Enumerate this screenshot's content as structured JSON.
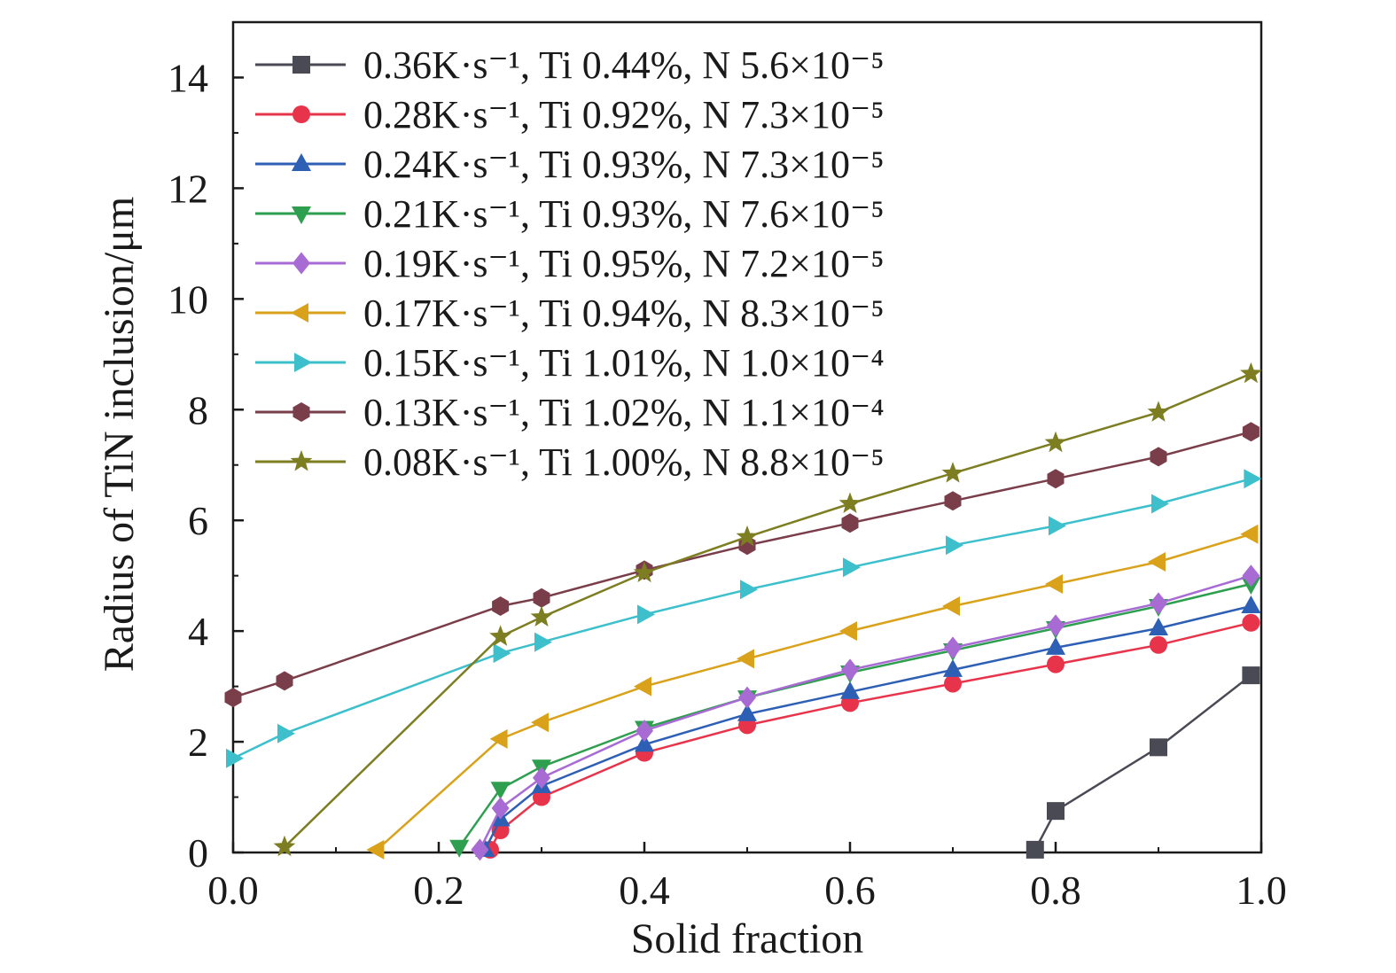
{
  "chart_data": {
    "type": "line",
    "title": "",
    "xlabel": "Solid fraction",
    "ylabel": "Radius of TiN inclusion/μm",
    "xlim": [
      0,
      1.0
    ],
    "ylim": [
      0,
      15
    ],
    "xticks": [
      "0.0",
      "0.2",
      "0.4",
      "0.6",
      "0.8",
      "1.0"
    ],
    "yticks": [
      "0",
      "2",
      "4",
      "6",
      "8",
      "10",
      "12",
      "14"
    ],
    "grid": false,
    "legend_position": "top-left",
    "series": [
      {
        "name": "0.36K·s⁻¹, Ti 0.44%, N 5.6×10⁻⁵",
        "color": "#4a4a55",
        "marker": "square",
        "x": [
          0.78,
          0.8,
          0.9,
          0.99
        ],
        "y": [
          0.05,
          0.75,
          1.9,
          3.2
        ]
      },
      {
        "name": "0.28K·s⁻¹, Ti 0.92%, N 7.3×10⁻⁵",
        "color": "#e8344a",
        "marker": "circle",
        "x": [
          0.25,
          0.26,
          0.3,
          0.4,
          0.5,
          0.6,
          0.7,
          0.8,
          0.9,
          0.99
        ],
        "y": [
          0.05,
          0.4,
          1.0,
          1.8,
          2.3,
          2.7,
          3.05,
          3.4,
          3.75,
          4.15
        ]
      },
      {
        "name": "0.24K·s⁻¹, Ti 0.93%, N 7.3×10⁻⁵",
        "color": "#2d5fb5",
        "marker": "triangle-up",
        "x": [
          0.245,
          0.26,
          0.3,
          0.4,
          0.5,
          0.6,
          0.7,
          0.8,
          0.9,
          0.99
        ],
        "y": [
          0.05,
          0.6,
          1.2,
          1.95,
          2.5,
          2.9,
          3.3,
          3.7,
          4.05,
          4.45
        ]
      },
      {
        "name": "0.21K·s⁻¹, Ti 0.93%, N 7.6×10⁻⁵",
        "color": "#2e9e4f",
        "marker": "triangle-down",
        "x": [
          0.22,
          0.26,
          0.3,
          0.4,
          0.5,
          0.6,
          0.7,
          0.8,
          0.9,
          0.99
        ],
        "y": [
          0.1,
          1.15,
          1.55,
          2.25,
          2.8,
          3.25,
          3.65,
          4.05,
          4.45,
          4.85
        ]
      },
      {
        "name": "0.19K·s⁻¹, Ti 0.95%, N 7.2×10⁻⁵",
        "color": "#a86bd4",
        "marker": "diamond",
        "x": [
          0.24,
          0.26,
          0.3,
          0.4,
          0.5,
          0.6,
          0.7,
          0.8,
          0.9,
          0.99
        ],
        "y": [
          0.05,
          0.8,
          1.35,
          2.2,
          2.8,
          3.3,
          3.7,
          4.1,
          4.5,
          5.0
        ]
      },
      {
        "name": "0.17K·s⁻¹, Ti 0.94%, N 8.3×10⁻⁵",
        "color": "#d9a21a",
        "marker": "triangle-left",
        "x": [
          0.14,
          0.26,
          0.3,
          0.4,
          0.5,
          0.6,
          0.7,
          0.8,
          0.9,
          0.99
        ],
        "y": [
          0.05,
          2.05,
          2.35,
          3.0,
          3.5,
          4.0,
          4.45,
          4.85,
          5.25,
          5.75
        ]
      },
      {
        "name": "0.15K·s⁻¹, Ti 1.01%, N 1.0×10⁻⁴",
        "color": "#3ec0cc",
        "marker": "triangle-right",
        "x": [
          0.0,
          0.05,
          0.26,
          0.3,
          0.4,
          0.5,
          0.6,
          0.7,
          0.8,
          0.9,
          0.99
        ],
        "y": [
          1.7,
          2.15,
          3.6,
          3.8,
          4.3,
          4.75,
          5.15,
          5.55,
          5.9,
          6.3,
          6.75
        ]
      },
      {
        "name": "0.13K·s⁻¹, Ti 1.02%, N 1.1×10⁻⁴",
        "color": "#7a3d4a",
        "marker": "hexagon",
        "x": [
          0.0,
          0.05,
          0.26,
          0.3,
          0.4,
          0.5,
          0.6,
          0.7,
          0.8,
          0.9,
          0.99
        ],
        "y": [
          2.8,
          3.1,
          4.45,
          4.6,
          5.1,
          5.55,
          5.95,
          6.35,
          6.75,
          7.15,
          7.6
        ]
      },
      {
        "name": "0.08K·s⁻¹, Ti 1.00%, N 8.8×10⁻⁵",
        "color": "#7d7d22",
        "marker": "star",
        "x": [
          0.05,
          0.26,
          0.3,
          0.4,
          0.5,
          0.6,
          0.7,
          0.8,
          0.9,
          0.99
        ],
        "y": [
          0.1,
          3.9,
          4.25,
          5.05,
          5.7,
          6.3,
          6.85,
          7.4,
          7.95,
          8.65
        ]
      }
    ]
  }
}
